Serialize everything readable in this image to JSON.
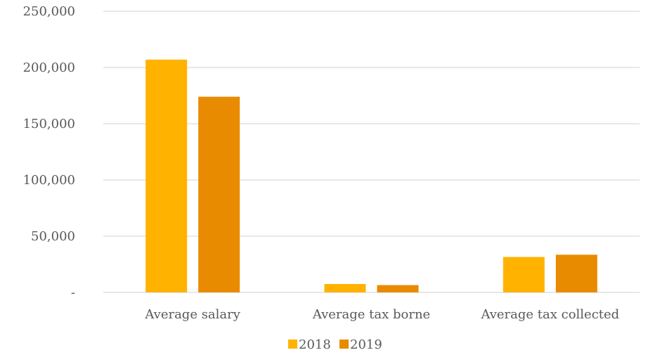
{
  "chart_data": {
    "type": "bar",
    "categories": [
      "Average salary",
      "Average tax borne",
      "Average tax collected"
    ],
    "series": [
      {
        "name": "2018",
        "color": "#FFB300",
        "values": [
          207000,
          7500,
          31500
        ]
      },
      {
        "name": "2019",
        "color": "#E88B00",
        "values": [
          174000,
          6500,
          33500
        ]
      }
    ],
    "ylim": [
      0,
      250000
    ],
    "yticks": [
      0,
      50000,
      100000,
      150000,
      200000,
      250000
    ],
    "ytick_labels": [
      "-",
      "50,000",
      "100,000",
      "150,000",
      "200,000",
      "250,000"
    ],
    "grid": true,
    "legend_placement": "bottom",
    "gridline_color": "#d9d9d9",
    "text_color": "#595959"
  }
}
